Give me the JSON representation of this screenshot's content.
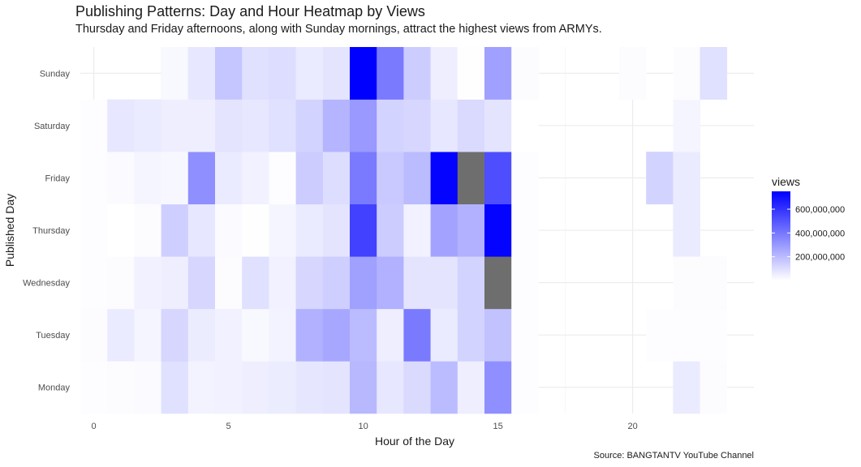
{
  "header": {
    "title": "Publishing Patterns: Day and Hour Heatmap by Views",
    "subtitle": "Thursday and Friday afternoons, along with Sunday mornings, attract the highest views from ARMYs."
  },
  "caption": "Source: BANGTANTV YouTube Channel",
  "chart_data": {
    "type": "heatmap",
    "title": "Publishing Patterns: Day and Hour Heatmap by Views",
    "subtitle": "Thursday and Friday afternoons, along with Sunday mornings, attract the highest views from ARMYs.",
    "xlabel": "Hour of the Day",
    "ylabel": "Published Day",
    "xlim": [
      -0.5,
      24.5
    ],
    "x_ticks": [
      0,
      5,
      10,
      15,
      20
    ],
    "y_categories": [
      "Monday",
      "Tuesday",
      "Wednesday",
      "Thursday",
      "Friday",
      "Saturday",
      "Sunday"
    ],
    "grid": true,
    "legend": {
      "title": "views",
      "position": "right",
      "min": 0,
      "max": 750000000,
      "breaks": [
        200000000,
        400000000,
        600000000
      ],
      "break_labels": [
        "200,000,000",
        "400,000,000",
        "600,000,000"
      ],
      "low_color": "#ffffff",
      "high_color": "#0000ff",
      "na_color": "#6e6e6e"
    },
    "cells": {
      "Monday": [
        [
          0,
          5000000
        ],
        [
          1,
          10000000
        ],
        [
          2,
          15000000
        ],
        [
          3,
          90000000
        ],
        [
          4,
          35000000
        ],
        [
          5,
          40000000
        ],
        [
          6,
          50000000
        ],
        [
          7,
          55000000
        ],
        [
          8,
          75000000
        ],
        [
          9,
          80000000
        ],
        [
          10,
          210000000
        ],
        [
          11,
          70000000
        ],
        [
          12,
          110000000
        ],
        [
          13,
          200000000
        ],
        [
          14,
          50000000
        ],
        [
          15,
          330000000
        ],
        [
          16,
          5000000
        ],
        [
          22,
          60000000
        ],
        [
          23,
          10000000
        ]
      ],
      "Tuesday": [
        [
          0,
          8000000
        ],
        [
          1,
          60000000
        ],
        [
          2,
          30000000
        ],
        [
          3,
          120000000
        ],
        [
          4,
          55000000
        ],
        [
          5,
          40000000
        ],
        [
          6,
          20000000
        ],
        [
          7,
          35000000
        ],
        [
          8,
          230000000
        ],
        [
          9,
          260000000
        ],
        [
          10,
          200000000
        ],
        [
          11,
          50000000
        ],
        [
          12,
          390000000
        ],
        [
          13,
          60000000
        ],
        [
          14,
          130000000
        ],
        [
          15,
          180000000
        ],
        [
          16,
          5000000
        ],
        [
          21,
          5000000
        ],
        [
          22,
          5000000
        ],
        [
          23,
          5000000
        ]
      ],
      "Wednesday": [
        [
          0,
          5000000
        ],
        [
          1,
          10000000
        ],
        [
          2,
          40000000
        ],
        [
          3,
          50000000
        ],
        [
          4,
          120000000
        ],
        [
          5,
          8000000
        ],
        [
          6,
          90000000
        ],
        [
          7,
          40000000
        ],
        [
          8,
          120000000
        ],
        [
          9,
          140000000
        ],
        [
          10,
          280000000
        ],
        [
          11,
          230000000
        ],
        [
          12,
          80000000
        ],
        [
          13,
          80000000
        ],
        [
          14,
          130000000
        ],
        [
          15,
          null
        ],
        [
          16,
          5000000
        ],
        [
          22,
          10000000
        ],
        [
          23,
          10000000
        ]
      ],
      "Thursday": [
        [
          0,
          5000000
        ],
        [
          1,
          1000000
        ],
        [
          2,
          10000000
        ],
        [
          3,
          140000000
        ],
        [
          4,
          70000000
        ],
        [
          5,
          15000000
        ],
        [
          6,
          2000000
        ],
        [
          7,
          30000000
        ],
        [
          8,
          60000000
        ],
        [
          9,
          80000000
        ],
        [
          10,
          560000000
        ],
        [
          11,
          150000000
        ],
        [
          12,
          40000000
        ],
        [
          13,
          270000000
        ],
        [
          14,
          230000000
        ],
        [
          15,
          740000000
        ],
        [
          16,
          5000000
        ],
        [
          22,
          60000000
        ]
      ],
      "Friday": [
        [
          0,
          5000000
        ],
        [
          1,
          15000000
        ],
        [
          2,
          30000000
        ],
        [
          3,
          25000000
        ],
        [
          4,
          330000000
        ],
        [
          5,
          60000000
        ],
        [
          6,
          40000000
        ],
        [
          7,
          5000000
        ],
        [
          8,
          150000000
        ],
        [
          9,
          100000000
        ],
        [
          10,
          390000000
        ],
        [
          11,
          160000000
        ],
        [
          12,
          200000000
        ],
        [
          13,
          740000000
        ],
        [
          14,
          null
        ],
        [
          15,
          520000000
        ],
        [
          16,
          5000000
        ],
        [
          21,
          130000000
        ],
        [
          22,
          60000000
        ]
      ],
      "Saturday": [
        [
          0,
          5000000
        ],
        [
          1,
          70000000
        ],
        [
          2,
          60000000
        ],
        [
          3,
          50000000
        ],
        [
          4,
          50000000
        ],
        [
          5,
          80000000
        ],
        [
          6,
          70000000
        ],
        [
          7,
          90000000
        ],
        [
          8,
          130000000
        ],
        [
          9,
          220000000
        ],
        [
          10,
          300000000
        ],
        [
          11,
          130000000
        ],
        [
          12,
          120000000
        ],
        [
          13,
          70000000
        ],
        [
          14,
          110000000
        ],
        [
          15,
          80000000
        ],
        [
          16,
          1000000
        ],
        [
          22,
          30000000
        ]
      ],
      "Sunday": [
        [
          3,
          20000000
        ],
        [
          4,
          70000000
        ],
        [
          5,
          170000000
        ],
        [
          6,
          90000000
        ],
        [
          7,
          100000000
        ],
        [
          8,
          60000000
        ],
        [
          9,
          80000000
        ],
        [
          10,
          750000000
        ],
        [
          11,
          390000000
        ],
        [
          12,
          150000000
        ],
        [
          13,
          50000000
        ],
        [
          14,
          2000000
        ],
        [
          15,
          280000000
        ],
        [
          16,
          10000000
        ],
        [
          20,
          10000000
        ],
        [
          22,
          10000000
        ],
        [
          23,
          90000000
        ]
      ]
    }
  }
}
